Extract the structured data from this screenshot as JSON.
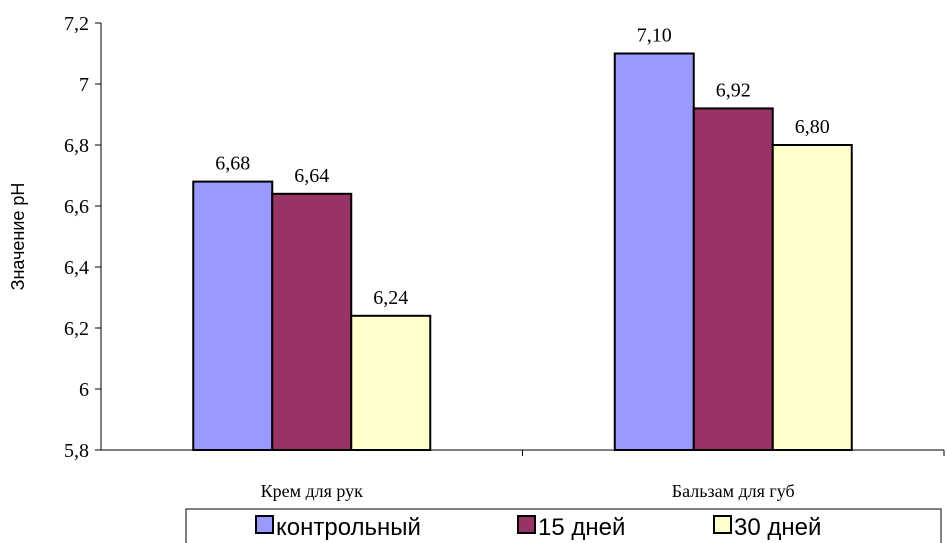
{
  "chart_data": {
    "type": "bar",
    "title": "",
    "xlabel": "",
    "ylabel": "Значение pH",
    "ylim": [
      5.8,
      7.2
    ],
    "yticks": [
      "5,8",
      "6",
      "6,2",
      "6,4",
      "6,6",
      "6,8",
      "7",
      "7,2"
    ],
    "ytick_values": [
      5.8,
      6.0,
      6.2,
      6.4,
      6.6,
      6.8,
      7.0,
      7.2
    ],
    "categories": [
      "Крем для рук",
      "Бальзам для губ"
    ],
    "series": [
      {
        "name": "контрольный",
        "color": "#9999ff",
        "values": [
          6.68,
          7.1
        ],
        "labels": [
          "6,68",
          "7,10"
        ]
      },
      {
        "name": "15 дней",
        "color": "#993366",
        "values": [
          6.64,
          6.92
        ],
        "labels": [
          "6,64",
          "6,92"
        ]
      },
      {
        "name": "30 дней",
        "color": "#ffffcc",
        "values": [
          6.24,
          6.8
        ],
        "labels": [
          "6,24",
          "6,80"
        ]
      }
    ],
    "legend_position": "bottom",
    "grid": false
  }
}
